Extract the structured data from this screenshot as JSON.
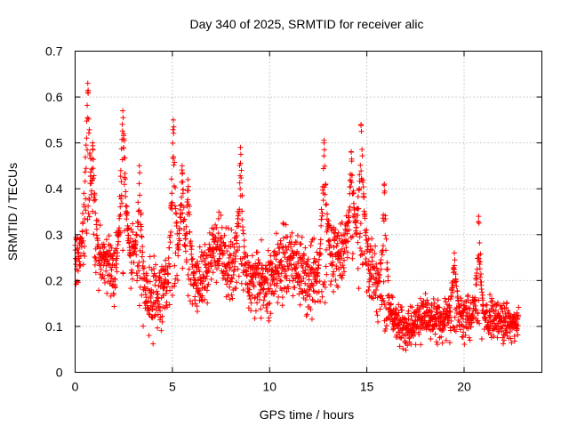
{
  "chart_data": {
    "type": "scatter",
    "title": "Day 340 of 2025, SRMTID for receiver alic",
    "xlabel": "GPS time / hours",
    "ylabel": "SRMTID / TECUs",
    "xlim": [
      0,
      24
    ],
    "ylim": [
      0,
      0.7
    ],
    "xticks": [
      0,
      5,
      10,
      15,
      20
    ],
    "yticks": [
      0,
      0.1,
      0.2,
      0.3,
      0.4,
      0.5,
      0.6,
      0.7
    ],
    "xtick_labels": [
      "0",
      "5",
      "10",
      "15",
      "20"
    ],
    "ytick_labels": [
      "0",
      "0.1",
      "0.2",
      "0.3",
      "0.4",
      "0.5",
      "0.6",
      "0.7"
    ],
    "grid": true,
    "marker": "+",
    "color": "#ff0000",
    "x_extent": [
      0,
      22.8
    ],
    "baseline_profile": [
      [
        0.0,
        0.24
      ],
      [
        0.5,
        0.3
      ],
      [
        0.8,
        0.33
      ],
      [
        1.0,
        0.27
      ],
      [
        1.5,
        0.24
      ],
      [
        2.0,
        0.22
      ],
      [
        2.5,
        0.26
      ],
      [
        3.0,
        0.25
      ],
      [
        3.5,
        0.17
      ],
      [
        4.0,
        0.16
      ],
      [
        4.5,
        0.17
      ],
      [
        5.0,
        0.2
      ],
      [
        5.5,
        0.21
      ],
      [
        6.0,
        0.2
      ],
      [
        6.5,
        0.2
      ],
      [
        7.0,
        0.25
      ],
      [
        7.5,
        0.27
      ],
      [
        8.0,
        0.22
      ],
      [
        8.5,
        0.22
      ],
      [
        9.0,
        0.2
      ],
      [
        9.5,
        0.2
      ],
      [
        10.0,
        0.19
      ],
      [
        10.5,
        0.22
      ],
      [
        11.0,
        0.25
      ],
      [
        11.5,
        0.22
      ],
      [
        12.0,
        0.2
      ],
      [
        12.5,
        0.21
      ],
      [
        13.0,
        0.25
      ],
      [
        13.5,
        0.25
      ],
      [
        14.0,
        0.27
      ],
      [
        14.5,
        0.28
      ],
      [
        15.0,
        0.26
      ],
      [
        15.5,
        0.2
      ],
      [
        16.0,
        0.13
      ],
      [
        16.5,
        0.11
      ],
      [
        17.0,
        0.09
      ],
      [
        17.5,
        0.11
      ],
      [
        18.0,
        0.13
      ],
      [
        18.5,
        0.12
      ],
      [
        19.0,
        0.11
      ],
      [
        19.5,
        0.12
      ],
      [
        20.0,
        0.12
      ],
      [
        20.5,
        0.12
      ],
      [
        21.0,
        0.11
      ],
      [
        21.5,
        0.12
      ],
      [
        22.0,
        0.11
      ],
      [
        22.8,
        0.1
      ]
    ],
    "peaks": [
      {
        "x": 0.65,
        "y": 0.63
      },
      {
        "x": 0.9,
        "y": 0.5
      },
      {
        "x": 2.45,
        "y": 0.57
      },
      {
        "x": 2.5,
        "y": 0.52
      },
      {
        "x": 3.3,
        "y": 0.45
      },
      {
        "x": 5.05,
        "y": 0.55
      },
      {
        "x": 5.5,
        "y": 0.45
      },
      {
        "x": 5.8,
        "y": 0.42
      },
      {
        "x": 8.5,
        "y": 0.49
      },
      {
        "x": 12.8,
        "y": 0.5
      },
      {
        "x": 14.2,
        "y": 0.48
      },
      {
        "x": 14.7,
        "y": 0.54
      },
      {
        "x": 15.9,
        "y": 0.41
      },
      {
        "x": 19.5,
        "y": 0.26
      },
      {
        "x": 20.75,
        "y": 0.34
      }
    ]
  }
}
